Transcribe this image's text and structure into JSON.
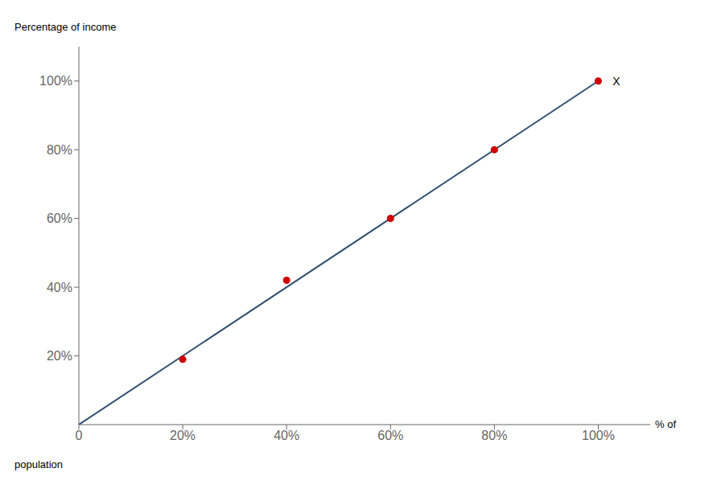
{
  "chart_data": {
    "type": "scatter",
    "ylabel": "Percentage of income",
    "xlabel": [
      "% of",
      "population"
    ],
    "series": [
      {
        "type": "line",
        "color": "#2f4f6f",
        "x": [
          0,
          100
        ],
        "values": [
          0,
          100
        ]
      },
      {
        "type": "scatter",
        "color": "#cc0000",
        "marker": "circle",
        "x": [
          20,
          40,
          60,
          80,
          100
        ],
        "values": [
          19,
          42,
          60,
          80,
          100
        ]
      }
    ],
    "xlim": [
      0,
      110
    ],
    "ylim": [
      0,
      110
    ],
    "xticks": [
      0,
      {
        "value": 20,
        "label": "20%"
      },
      {
        "value": 40,
        "label": "40%"
      },
      {
        "value": 60,
        "label": "60%"
      },
      {
        "value": 80,
        "label": "80%"
      },
      {
        "value": 100,
        "label": "100%"
      }
    ],
    "yticks": [
      {
        "value": 20,
        "label": "20%"
      },
      {
        "value": 40,
        "label": "40%"
      },
      {
        "value": 60,
        "label": "60%"
      },
      {
        "value": 80,
        "label": "80%"
      },
      {
        "value": 100,
        "label": "100%"
      }
    ],
    "annotations": [
      {
        "text": "X",
        "x": 102,
        "y": 100
      }
    ],
    "grid": false
  }
}
